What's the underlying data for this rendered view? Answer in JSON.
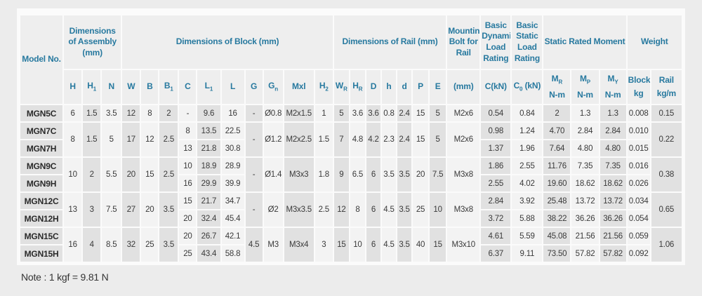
{
  "page": {
    "note": "Note : 1 kgf = 9.81 N"
  },
  "colors": {
    "header_text": "#27799f",
    "column_dark": "#e1e1e1",
    "column_light": "#f3f3f3",
    "page_background": "#ececec"
  },
  "table": {
    "header_groups": [
      {
        "label": "Model No.",
        "cs": 1,
        "rs": 2
      },
      {
        "label": "Dimensions of Assembly (mm)",
        "cs": 3
      },
      {
        "label": "Dimensions of Block (mm)",
        "cs": 10
      },
      {
        "label": "Dimensions of Rail (mm)",
        "cs": 7
      },
      {
        "label": "Mounting Bolt for Rail",
        "cs": 1
      },
      {
        "label": "Basic Dynamic Load Rating",
        "cs": 1
      },
      {
        "label": "Basic Static Load Rating",
        "cs": 1
      },
      {
        "label": "Static Rated Moment",
        "cs": 3
      },
      {
        "label": "Weight",
        "cs": 2
      }
    ],
    "sub_headers": [
      "H",
      "H_1",
      "N",
      "W",
      "B",
      "B_1",
      "C",
      "L_1",
      "L",
      "G",
      "G_n",
      "Mxl",
      "H_2",
      "W_R",
      "H_R",
      "D",
      "h",
      "d",
      "P",
      "E",
      "(mm)",
      "C(kN)",
      "C_0 (kN)",
      "M_R|N-m",
      "M_P|N-m",
      "M_Y|N-m",
      "Block|kg",
      "Rail|kg/m"
    ],
    "rows": [
      [
        "MGN5C",
        "6",
        "1.5",
        "3.5",
        "12",
        "8",
        "2",
        "-",
        "9.6",
        "16",
        "-",
        "Ø0.8",
        "M2x1.5",
        "1",
        "5",
        "3.6",
        "3.6",
        "0.8",
        "2.4",
        "15",
        "5",
        "M2x6",
        "0.54",
        "0.84",
        "2",
        "1.3",
        "1.3",
        "0.008",
        "0.15"
      ],
      [
        "MGN7C",
        [
          "8",
          2
        ],
        [
          "1.5",
          2
        ],
        [
          "5",
          2
        ],
        [
          "17",
          2
        ],
        [
          "12",
          2
        ],
        [
          "2.5",
          2
        ],
        "8",
        "13.5",
        "22.5",
        [
          "-",
          2
        ],
        [
          "Ø1.2",
          2
        ],
        [
          "M2x2.5",
          2
        ],
        [
          "1.5",
          2
        ],
        [
          "7",
          2
        ],
        [
          "4.8",
          2
        ],
        [
          "4.2",
          2
        ],
        [
          "2.3",
          2
        ],
        [
          "2.4",
          2
        ],
        [
          "15",
          2
        ],
        [
          "5",
          2
        ],
        [
          "M2x6",
          2
        ],
        "0.98",
        "1.24",
        "4.70",
        "2.84",
        "2.84",
        "0.010",
        [
          "0.22",
          2
        ]
      ],
      [
        "MGN7H",
        "13",
        "21.8",
        "30.8",
        "1.37",
        "1.96",
        "7.64",
        "4.80",
        "4.80",
        "0.015"
      ],
      [
        "MGN9C",
        [
          "10",
          2
        ],
        [
          "2",
          2
        ],
        [
          "5.5",
          2
        ],
        [
          "20",
          2
        ],
        [
          "15",
          2
        ],
        [
          "2.5",
          2
        ],
        "10",
        "18.9",
        "28.9",
        [
          "-",
          2
        ],
        [
          "Ø1.4",
          2
        ],
        [
          "M3x3",
          2
        ],
        [
          "1.8",
          2
        ],
        [
          "9",
          2
        ],
        [
          "6.5",
          2
        ],
        [
          "6",
          2
        ],
        [
          "3.5",
          2
        ],
        [
          "3.5",
          2
        ],
        [
          "20",
          2
        ],
        [
          "7.5",
          2
        ],
        [
          "M3x8",
          2
        ],
        "1.86",
        "2.55",
        "11.76",
        "7.35",
        "7.35",
        "0.016",
        [
          "0.38",
          2
        ]
      ],
      [
        "MGN9H",
        "16",
        "29.9",
        "39.9",
        "2.55",
        "4.02",
        "19.60",
        "18.62",
        "18.62",
        "0.026"
      ],
      [
        "MGN12C",
        [
          "13",
          2
        ],
        [
          "3",
          2
        ],
        [
          "7.5",
          2
        ],
        [
          "27",
          2
        ],
        [
          "20",
          2
        ],
        [
          "3.5",
          2
        ],
        "15",
        "21.7",
        "34.7",
        [
          "-",
          2
        ],
        [
          "Ø2",
          2
        ],
        [
          "M3x3.5",
          2
        ],
        [
          "2.5",
          2
        ],
        [
          "12",
          2
        ],
        [
          "8",
          2
        ],
        [
          "6",
          2
        ],
        [
          "4.5",
          2
        ],
        [
          "3.5",
          2
        ],
        [
          "25",
          2
        ],
        [
          "10",
          2
        ],
        [
          "M3x8",
          2
        ],
        "2.84",
        "3.92",
        "25.48",
        "13.72",
        "13.72",
        "0.034",
        [
          "0.65",
          2
        ]
      ],
      [
        "MGN12H",
        "20",
        "32.4",
        "45.4",
        "3.72",
        "5.88",
        "38.22",
        "36.26",
        "36.26",
        "0.054"
      ],
      [
        "MGN15C",
        [
          "16",
          2
        ],
        [
          "4",
          2
        ],
        [
          "8.5",
          2
        ],
        [
          "32",
          2
        ],
        [
          "25",
          2
        ],
        [
          "3.5",
          2
        ],
        "20",
        "26.7",
        "42.1",
        [
          "4.5",
          2
        ],
        [
          "M3",
          2
        ],
        [
          "M3x4",
          2
        ],
        [
          "3",
          2
        ],
        [
          "15",
          2
        ],
        [
          "10",
          2
        ],
        [
          "6",
          2
        ],
        [
          "4.5",
          2
        ],
        [
          "3.5",
          2
        ],
        [
          "40",
          2
        ],
        [
          "15",
          2
        ],
        [
          "M3x10",
          2
        ],
        "4.61",
        "5.59",
        "45.08",
        "21.56",
        "21.56",
        "0.059",
        [
          "1.06",
          2
        ]
      ],
      [
        "MGN15H",
        "25",
        "43.4",
        "58.8",
        "6.37",
        "9.11",
        "73.50",
        "57.82",
        "57.82",
        "0.092"
      ]
    ]
  }
}
